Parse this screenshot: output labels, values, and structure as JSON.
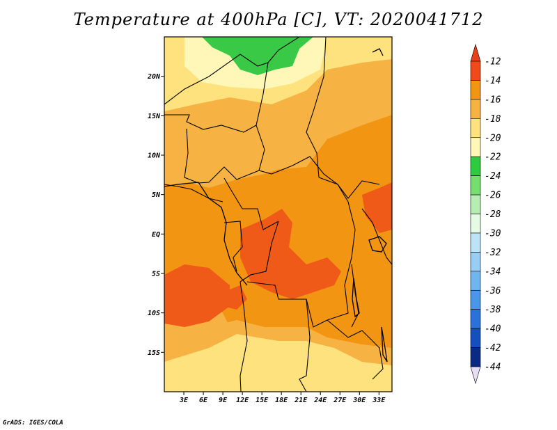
{
  "title": "Temperature at 400hPa [C], VT: 2020041712",
  "credit": "GrADS: IGES/COLA",
  "map": {
    "lat_range": [
      -20,
      25
    ],
    "lon_range": [
      0,
      35
    ],
    "lat_ticks": [
      {
        "lat": 20,
        "label": "20N"
      },
      {
        "lat": 15,
        "label": "15N"
      },
      {
        "lat": 10,
        "label": "10N"
      },
      {
        "lat": 5,
        "label": "5N"
      },
      {
        "lat": 0,
        "label": "EQ"
      },
      {
        "lat": -5,
        "label": "5S"
      },
      {
        "lat": -10,
        "label": "10S"
      },
      {
        "lat": -15,
        "label": "15S"
      }
    ],
    "lon_ticks": [
      {
        "lon": 3,
        "label": "3E"
      },
      {
        "lon": 6,
        "label": "6E"
      },
      {
        "lon": 9,
        "label": "9E"
      },
      {
        "lon": 12,
        "label": "12E"
      },
      {
        "lon": 15,
        "label": "15E"
      },
      {
        "lon": 18,
        "label": "18E"
      },
      {
        "lon": 21,
        "label": "21E"
      },
      {
        "lon": 24,
        "label": "24E"
      },
      {
        "lon": 27,
        "label": "27E"
      },
      {
        "lon": 30,
        "label": "30E"
      },
      {
        "lon": 33,
        "label": "33E"
      }
    ]
  },
  "colorbar": {
    "labels": [
      "-12",
      "-14",
      "-16",
      "-18",
      "-20",
      "-22",
      "-24",
      "-26",
      "-28",
      "-30",
      "-32",
      "-34",
      "-36",
      "-38",
      "-40",
      "-42",
      "-44"
    ],
    "colors": [
      "#ef4b18",
      "#f29512",
      "#f7b244",
      "#fde27e",
      "#fff7b7",
      "#2fcb3f",
      "#74de6f",
      "#b6eeb2",
      "#e6fbe3",
      "#bde3f6",
      "#9acdf4",
      "#6fb6ee",
      "#4a96e8",
      "#2a72d8",
      "#154fbb",
      "#0a2a86"
    ],
    "top_cap_color": "#e8411a",
    "bottom_cap_color": "#e6dff6"
  }
}
